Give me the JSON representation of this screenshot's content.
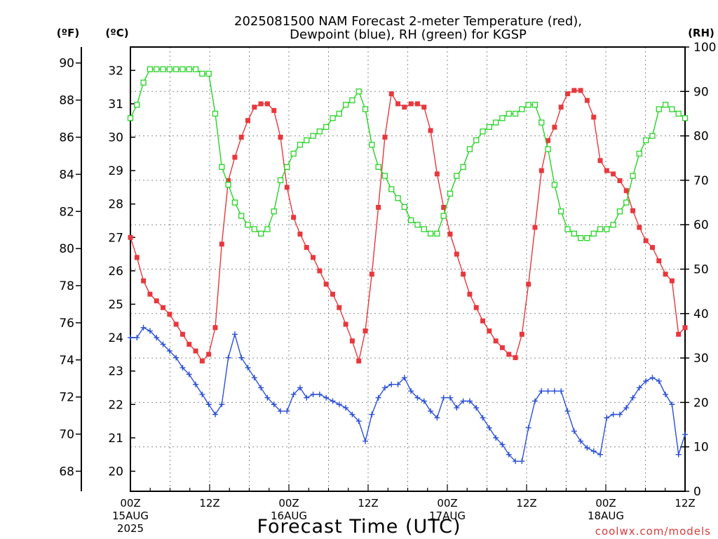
{
  "chart_data": {
    "type": "line",
    "title_lines": [
      "2025081500 NAM Forecast 2-meter Temperature (red),",
      "Dewpoint (blue), RH (green) for KGSP"
    ],
    "xlabel": "Forecast Time (UTC)",
    "credit": "coolwx.com/models",
    "units": {
      "fahrenheit": "(ºF)",
      "celsius": "(ºC)",
      "rh": "(RH)"
    },
    "x_hours_range": [
      0,
      84
    ],
    "x_ticks": [
      {
        "h": 0,
        "lines": [
          "00Z",
          "15AUG",
          "2025"
        ]
      },
      {
        "h": 12,
        "lines": [
          "12Z"
        ]
      },
      {
        "h": 24,
        "lines": [
          "00Z",
          "16AUG"
        ]
      },
      {
        "h": 36,
        "lines": [
          "12Z"
        ]
      },
      {
        "h": 48,
        "lines": [
          "00Z",
          "17AUG"
        ]
      },
      {
        "h": 60,
        "lines": [
          "12Z"
        ]
      },
      {
        "h": 72,
        "lines": [
          "00Z",
          "18AUG"
        ]
      },
      {
        "h": 84,
        "lines": [
          "12Z"
        ]
      }
    ],
    "fahrenheit_ticks": [
      68,
      70,
      72,
      74,
      76,
      78,
      80,
      82,
      84,
      86,
      88,
      90
    ],
    "celsius_ticks": [
      20,
      21,
      22,
      23,
      24,
      25,
      26,
      27,
      28,
      29,
      30,
      31,
      32
    ],
    "celsius_range": [
      19.4,
      32.7
    ],
    "rh_ticks": [
      0,
      10,
      20,
      30,
      40,
      50,
      60,
      70,
      80,
      90,
      100
    ],
    "rh_range": [
      0,
      100
    ],
    "grid": true,
    "series": [
      {
        "name": "Temperature",
        "unit": "C",
        "color": "#e8383d",
        "marker": "filled-square",
        "values": [
          27.0,
          26.4,
          25.7,
          25.3,
          25.1,
          24.9,
          24.7,
          24.4,
          24.1,
          23.8,
          23.6,
          23.3,
          23.5,
          24.3,
          26.8,
          28.7,
          29.4,
          30.0,
          30.5,
          30.9,
          31.0,
          31.0,
          30.8,
          30.0,
          28.5,
          27.6,
          27.1,
          26.7,
          26.4,
          26.0,
          25.6,
          25.3,
          24.9,
          24.4,
          23.9,
          23.3,
          24.2,
          25.9,
          27.9,
          30.0,
          31.3,
          31.0,
          30.9,
          31.0,
          31.0,
          30.9,
          30.2,
          28.9,
          27.9,
          27.1,
          26.5,
          25.9,
          25.3,
          24.9,
          24.5,
          24.2,
          23.9,
          23.7,
          23.5,
          23.4,
          24.1,
          25.6,
          27.3,
          29.0,
          29.9,
          30.3,
          30.9,
          31.3,
          31.4,
          31.4,
          31.1,
          30.6,
          29.3,
          29.0,
          28.9,
          28.7,
          28.4,
          27.8,
          27.3,
          26.9,
          26.7,
          26.3,
          25.9,
          25.7,
          24.1,
          24.3
        ]
      },
      {
        "name": "Dewpoint",
        "unit": "C",
        "color": "#2b4fd7",
        "marker": "plus",
        "values": [
          24.0,
          24.0,
          24.3,
          24.2,
          24.0,
          23.8,
          23.6,
          23.4,
          23.1,
          22.9,
          22.6,
          22.3,
          22.0,
          21.7,
          22.0,
          23.4,
          24.1,
          23.4,
          23.1,
          22.8,
          22.5,
          22.2,
          22.0,
          21.8,
          21.8,
          22.3,
          22.5,
          22.2,
          22.3,
          22.3,
          22.2,
          22.1,
          22.0,
          21.9,
          21.7,
          21.5,
          20.9,
          21.7,
          22.2,
          22.5,
          22.6,
          22.6,
          22.8,
          22.4,
          22.2,
          22.1,
          21.8,
          21.6,
          22.2,
          22.2,
          21.9,
          22.1,
          22.1,
          21.9,
          21.6,
          21.3,
          21.0,
          20.8,
          20.5,
          20.3,
          20.3,
          21.3,
          22.1,
          22.4,
          22.4,
          22.4,
          22.4,
          21.8,
          21.2,
          20.9,
          20.7,
          20.6,
          20.5,
          21.6,
          21.7,
          21.7,
          21.9,
          22.2,
          22.5,
          22.7,
          22.8,
          22.7,
          22.3,
          22.0,
          20.5,
          21.1
        ]
      },
      {
        "name": "RH",
        "unit": "%",
        "color": "#27d326",
        "marker": "open-square",
        "values": [
          84,
          87,
          92,
          95,
          95,
          95,
          95,
          95,
          95,
          95,
          95,
          94,
          94,
          85,
          73,
          69,
          65,
          62,
          60,
          59,
          58,
          59,
          63,
          70,
          73,
          76,
          78,
          79,
          80,
          81,
          82,
          84,
          85,
          87,
          88,
          90,
          86,
          78,
          73,
          71,
          68,
          66,
          64,
          61,
          60,
          59,
          58,
          58,
          62,
          67,
          71,
          73,
          77,
          79,
          81,
          82,
          83,
          84,
          85,
          85,
          86,
          87,
          87,
          83,
          77,
          69,
          63,
          59,
          58,
          57,
          57,
          58,
          59,
          59,
          60,
          63,
          65,
          71,
          76,
          79,
          80,
          86,
          87,
          86,
          85,
          84
        ]
      }
    ]
  }
}
